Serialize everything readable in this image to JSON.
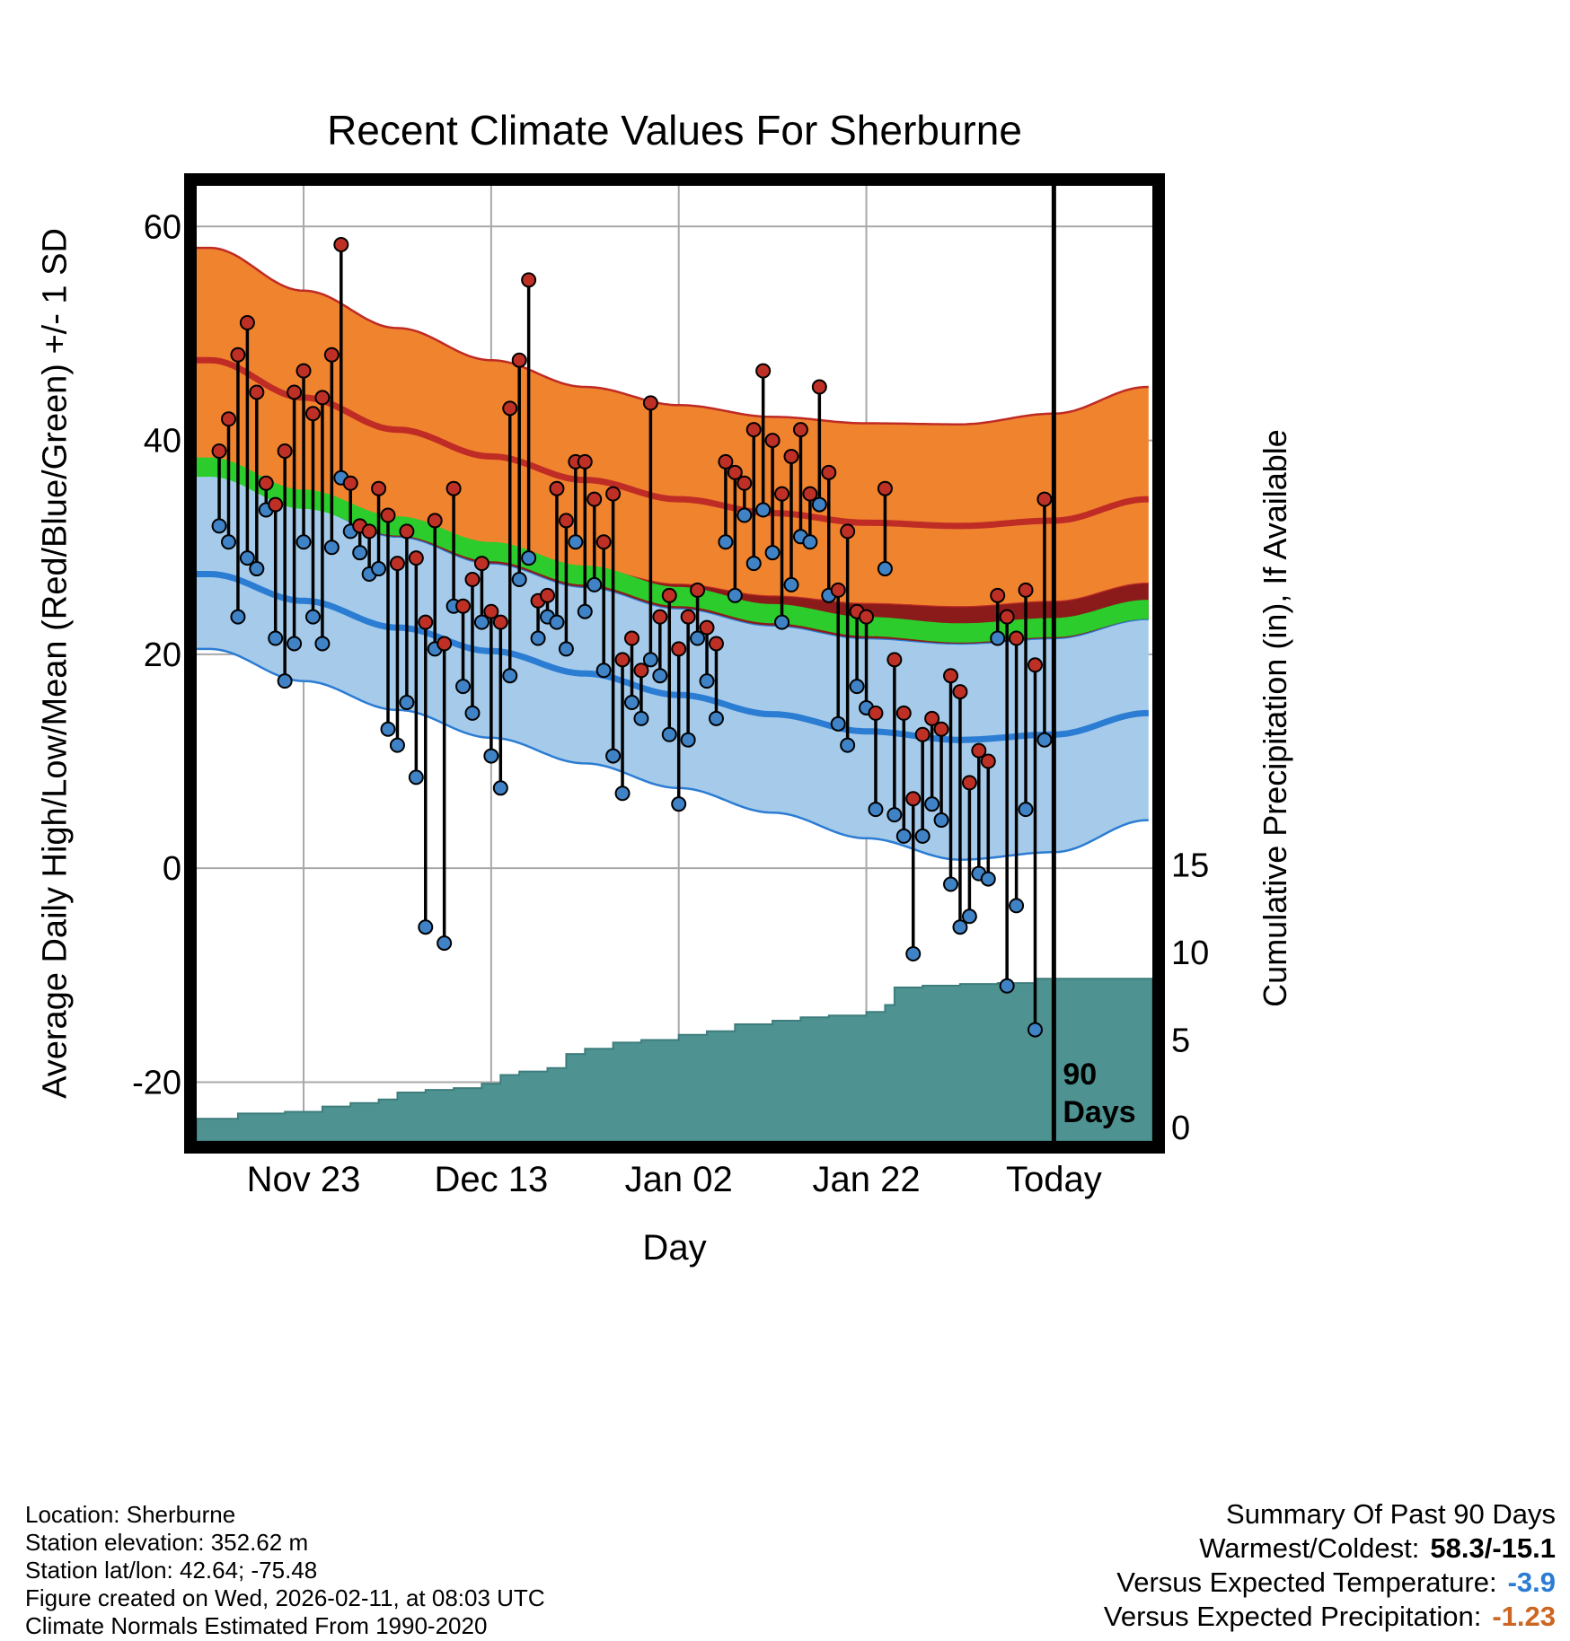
{
  "chart_data": {
    "type": "line",
    "title": "Recent Climate Values For Sherburne",
    "xlabel": "Day",
    "ylabel_left": "Average Daily High/Low/Mean (Red/Blue/Green) +/- 1 SD",
    "ylabel_right": "Cumulative Precipitation (in), If Available",
    "x_ticks": [
      {
        "day": 10,
        "label": "Nov 23"
      },
      {
        "day": 30,
        "label": "Dec 13"
      },
      {
        "day": 50,
        "label": "Jan 02"
      },
      {
        "day": 70,
        "label": "Jan 22"
      },
      {
        "day": 90,
        "label": "Today"
      }
    ],
    "y_ticks_left": [
      60,
      40,
      20,
      0,
      -20
    ],
    "y_ticks_right": [
      15,
      10,
      5,
      0
    ],
    "xlim_days": [
      -1.4,
      100.5
    ],
    "ylim_left": [
      -25.5,
      63.8
    ],
    "grid": true,
    "legend": "none",
    "today_marker": {
      "day": 90,
      "label_line1": "90",
      "label_line2": "Days"
    },
    "normals": {
      "days": [
        0,
        10,
        20,
        30,
        40,
        50,
        60,
        70,
        80,
        90,
        100
      ],
      "high_upper": [
        58,
        54,
        50.5,
        47.5,
        45,
        43.3,
        42.2,
        41.6,
        41.5,
        42.5,
        45
      ],
      "high_mean": [
        47.5,
        44,
        41,
        38.5,
        36.3,
        34.5,
        33.2,
        32.3,
        32.0,
        32.5,
        34.5
      ],
      "high_lower": [
        37.8,
        35,
        32.3,
        30,
        28,
        26.5,
        25.4,
        24.7,
        24.4,
        24.9,
        26.6
      ],
      "mean": [
        37.5,
        34.5,
        32,
        29.6,
        27.4,
        25.4,
        23.8,
        22.6,
        22.0,
        22.5,
        24.2
      ],
      "mean_halfwidth": 0.9,
      "low_upper": [
        36.8,
        33.8,
        31,
        28.5,
        26.3,
        24.3,
        22.7,
        21.5,
        21.0,
        21.5,
        23.3
      ],
      "low_mean": [
        27.5,
        25,
        22.5,
        20.3,
        18.2,
        16.2,
        14.4,
        12.8,
        12.0,
        12.5,
        14.5
      ],
      "low_lower": [
        20.5,
        17.5,
        14.8,
        12.2,
        9.8,
        7.5,
        5.2,
        2.8,
        0.8,
        1.5,
        4.5
      ]
    },
    "daily_high_low": [
      [
        1,
        39,
        32
      ],
      [
        2,
        42,
        30.5
      ],
      [
        3,
        48,
        23.5
      ],
      [
        4,
        51,
        29
      ],
      [
        5,
        44.5,
        28
      ],
      [
        6,
        36,
        33.5
      ],
      [
        7,
        34,
        21.5
      ],
      [
        8,
        39,
        17.5
      ],
      [
        9,
        44.5,
        21
      ],
      [
        10,
        46.5,
        30.5
      ],
      [
        11,
        42.5,
        23.5
      ],
      [
        12,
        44,
        21
      ],
      [
        13,
        48,
        30
      ],
      [
        14,
        58.3,
        36.5
      ],
      [
        15,
        36,
        31.5
      ],
      [
        16,
        32,
        29.5
      ],
      [
        17,
        31.5,
        27.5
      ],
      [
        18,
        35.5,
        28
      ],
      [
        19,
        33,
        13
      ],
      [
        20,
        28.5,
        11.5
      ],
      [
        21,
        31.5,
        15.5
      ],
      [
        22,
        29,
        8.5
      ],
      [
        23,
        23,
        -5.5
      ],
      [
        24,
        32.5,
        20.5
      ],
      [
        25,
        21,
        -7
      ],
      [
        26,
        35.5,
        24.5
      ],
      [
        27,
        24.5,
        17
      ],
      [
        28,
        27,
        14.5
      ],
      [
        29,
        28.5,
        23
      ],
      [
        30,
        24,
        10.5
      ],
      [
        31,
        23,
        7.5
      ],
      [
        32,
        43,
        18
      ],
      [
        33,
        47.5,
        27
      ],
      [
        34,
        55,
        29
      ],
      [
        35,
        25,
        21.5
      ],
      [
        36,
        25.5,
        23.5
      ],
      [
        37,
        35.5,
        23
      ],
      [
        38,
        32.5,
        20.5
      ],
      [
        39,
        38,
        30.5
      ],
      [
        40,
        38,
        24
      ],
      [
        41,
        34.5,
        26.5
      ],
      [
        42,
        30.5,
        18.5
      ],
      [
        43,
        35,
        10.5
      ],
      [
        44,
        19.5,
        7
      ],
      [
        45,
        21.5,
        15.5
      ],
      [
        46,
        18.5,
        14
      ],
      [
        47,
        43.5,
        19.5
      ],
      [
        48,
        23.5,
        18
      ],
      [
        49,
        25.5,
        12.5
      ],
      [
        50,
        20.5,
        6
      ],
      [
        51,
        23.5,
        12
      ],
      [
        52,
        26,
        21.5
      ],
      [
        53,
        22.5,
        17.5
      ],
      [
        54,
        21,
        14
      ],
      [
        55,
        38,
        30.5
      ],
      [
        56,
        37,
        25.5
      ],
      [
        57,
        36,
        33
      ],
      [
        58,
        41,
        28.5
      ],
      [
        59,
        46.5,
        33.5
      ],
      [
        60,
        40,
        29.5
      ],
      [
        61,
        35,
        23
      ],
      [
        62,
        38.5,
        26.5
      ],
      [
        63,
        41,
        31
      ],
      [
        64,
        35,
        30.5
      ],
      [
        65,
        45,
        34
      ],
      [
        66,
        37,
        25.5
      ],
      [
        67,
        26,
        13.5
      ],
      [
        68,
        31.5,
        11.5
      ],
      [
        69,
        24,
        17
      ],
      [
        70,
        23.5,
        15
      ],
      [
        71,
        14.5,
        5.5
      ],
      [
        72,
        35.5,
        28
      ],
      [
        73,
        19.5,
        5
      ],
      [
        74,
        14.5,
        3
      ],
      [
        75,
        6.5,
        -8
      ],
      [
        76,
        12.5,
        3
      ],
      [
        77,
        14,
        6
      ],
      [
        78,
        13,
        4.5
      ],
      [
        79,
        18,
        -1.5
      ],
      [
        80,
        16.5,
        -5.5
      ],
      [
        81,
        8,
        -4.5
      ],
      [
        82,
        11,
        -0.5
      ],
      [
        83,
        10,
        -1
      ],
      [
        84,
        25.5,
        21.5
      ],
      [
        85,
        23.5,
        -11
      ],
      [
        86,
        21.5,
        -3.5
      ],
      [
        87,
        26,
        5.5
      ],
      [
        88,
        19,
        -15.1
      ],
      [
        89,
        34.5,
        12
      ]
    ],
    "precip_cumulative": {
      "days": [
        -1,
        3,
        8,
        12,
        15,
        18,
        20,
        23,
        26,
        29,
        31,
        33,
        36,
        38,
        40,
        43,
        46,
        50,
        53,
        56,
        60,
        63,
        66,
        70,
        72,
        73,
        76,
        80,
        84,
        88,
        100
      ],
      "values": [
        0.5,
        0.8,
        0.9,
        1.2,
        1.4,
        1.6,
        2.0,
        2.15,
        2.25,
        2.5,
        3.0,
        3.2,
        3.4,
        4.2,
        4.5,
        4.85,
        5.0,
        5.3,
        5.5,
        5.9,
        6.1,
        6.3,
        6.4,
        6.6,
        7.0,
        8.0,
        8.1,
        8.2,
        8.25,
        8.5,
        8.5
      ]
    },
    "colors": {
      "high_band": "#F0832E",
      "high_line": "#BF2B25",
      "overlap_band": "#8B1A1A",
      "mean_band": "#2BCC2B",
      "low_band": "#A6CBEA",
      "low_line": "#2B7CD3",
      "precip_fill": "#4E9292",
      "precip_edge": "#3E7D7D",
      "high_dot": "#BE3026",
      "low_dot": "#3F83C6",
      "grid": "#A8A8A8"
    }
  },
  "footer": {
    "lines": [
      "Location: Sherburne",
      "Station elevation: 352.62 m",
      "Station lat/lon: 42.64; -75.48",
      "Figure created on Wed, 2026-02-11, at 08:03 UTC",
      "Climate Normals Estimated From 1990-2020"
    ]
  },
  "summary": {
    "heading": "Summary Of Past 90 Days",
    "rows": [
      {
        "label": "Warmest/Coldest:",
        "value": "58.3/-15.1",
        "color": "#000000"
      },
      {
        "label": "Versus Expected Temperature:",
        "value": "-3.9",
        "color": "#2B7CD3"
      },
      {
        "label": "Versus Expected Precipitation:",
        "value": "-1.23",
        "color": "#CC6622"
      }
    ]
  }
}
